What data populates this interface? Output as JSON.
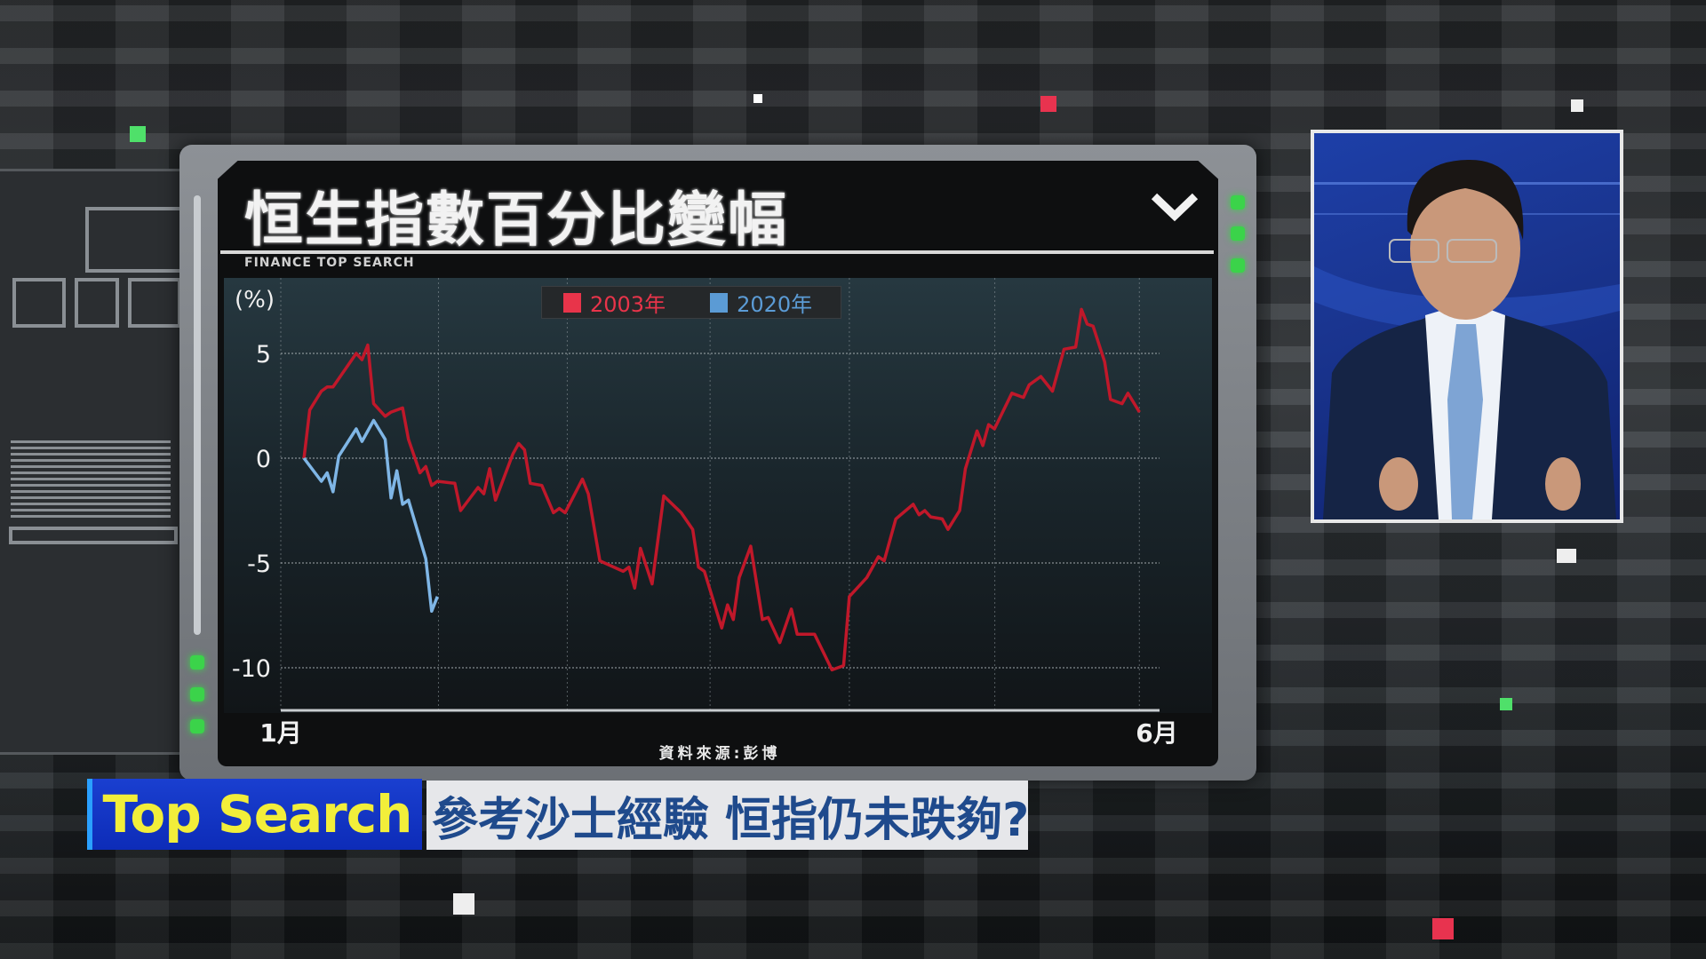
{
  "chart_data": {
    "type": "line",
    "title": "恒生指數百分比變幅",
    "subtitle": "FINANCE TOP SEARCH",
    "ylabel": "(%)",
    "ylim": [
      -12.5,
      8.9
    ],
    "yticks": [
      5,
      0,
      -5,
      -10
    ],
    "xlim": [
      "01-01",
      "06-01"
    ],
    "xticks": [
      {
        "x": "01-01",
        "label": "1月"
      },
      {
        "x": "06-01",
        "label": "6月"
      }
    ],
    "grid": true,
    "legend": "top-center",
    "source": "資料來源:彭博",
    "series": [
      {
        "name": "2003年",
        "color": "#c0182a",
        "legend_color": "#e8344a",
        "points": [
          [
            "01-05",
            0
          ],
          [
            "01-06",
            2.3
          ],
          [
            "01-08",
            3.2
          ],
          [
            "01-09",
            3.4
          ],
          [
            "01-10",
            3.4
          ],
          [
            "01-14",
            5.0
          ],
          [
            "01-15",
            4.7
          ],
          [
            "01-16",
            5.4
          ],
          [
            "01-17",
            2.6
          ],
          [
            "01-19",
            2.0
          ],
          [
            "01-20",
            2.2
          ],
          [
            "01-22",
            2.4
          ],
          [
            "01-23",
            0.9
          ],
          [
            "01-25",
            -0.7
          ],
          [
            "01-26",
            -0.4
          ],
          [
            "01-27",
            -1.3
          ],
          [
            "01-28",
            -1.1
          ],
          [
            "01-31",
            -1.2
          ],
          [
            "02-01",
            -2.5
          ],
          [
            "02-04",
            -1.4
          ],
          [
            "02-05",
            -1.7
          ],
          [
            "02-06",
            -0.5
          ],
          [
            "02-07",
            -2.0
          ],
          [
            "02-10",
            0.2
          ],
          [
            "02-11",
            0.7
          ],
          [
            "02-12",
            0.4
          ],
          [
            "02-13",
            -1.2
          ],
          [
            "02-15",
            -1.3
          ],
          [
            "02-17",
            -2.6
          ],
          [
            "02-18",
            -2.4
          ],
          [
            "02-19",
            -2.6
          ],
          [
            "02-22",
            -1.0
          ],
          [
            "02-23",
            -1.7
          ],
          [
            "02-25",
            -4.9
          ],
          [
            "03-01",
            -5.4
          ],
          [
            "03-02",
            -5.2
          ],
          [
            "03-03",
            -6.2
          ],
          [
            "03-04",
            -4.3
          ],
          [
            "03-06",
            -6.0
          ],
          [
            "03-08",
            -1.8
          ],
          [
            "03-11",
            -2.6
          ],
          [
            "03-13",
            -3.4
          ],
          [
            "03-14",
            -5.2
          ],
          [
            "03-15",
            -5.4
          ],
          [
            "03-18",
            -8.1
          ],
          [
            "03-19",
            -7.0
          ],
          [
            "03-20",
            -7.7
          ],
          [
            "03-21",
            -5.7
          ],
          [
            "03-23",
            -4.2
          ],
          [
            "03-25",
            -7.7
          ],
          [
            "03-26",
            -7.6
          ],
          [
            "03-28",
            -8.8
          ],
          [
            "03-30",
            -7.2
          ],
          [
            "03-31",
            -8.4
          ],
          [
            "04-03",
            -8.4
          ],
          [
            "04-06",
            -10.1
          ],
          [
            "04-08",
            -9.9
          ],
          [
            "04-09",
            -6.6
          ],
          [
            "04-12",
            -5.7
          ],
          [
            "04-14",
            -4.7
          ],
          [
            "04-15",
            -4.9
          ],
          [
            "04-17",
            -2.9
          ],
          [
            "04-20",
            -2.2
          ],
          [
            "04-21",
            -2.7
          ],
          [
            "04-22",
            -2.5
          ],
          [
            "04-23",
            -2.8
          ],
          [
            "04-25",
            -2.9
          ],
          [
            "04-26",
            -3.4
          ],
          [
            "04-28",
            -2.5
          ],
          [
            "04-29",
            -0.5
          ],
          [
            "05-01",
            1.3
          ],
          [
            "05-02",
            0.6
          ],
          [
            "05-03",
            1.6
          ],
          [
            "05-04",
            1.4
          ],
          [
            "05-07",
            3.1
          ],
          [
            "05-09",
            2.9
          ],
          [
            "05-10",
            3.5
          ],
          [
            "05-12",
            3.9
          ],
          [
            "05-14",
            3.2
          ],
          [
            "05-16",
            5.2
          ],
          [
            "05-18",
            5.3
          ],
          [
            "05-19",
            7.1
          ],
          [
            "05-20",
            6.4
          ],
          [
            "05-21",
            6.3
          ],
          [
            "05-23",
            4.6
          ],
          [
            "05-24",
            2.8
          ],
          [
            "05-26",
            2.6
          ],
          [
            "05-27",
            3.1
          ],
          [
            "05-29",
            2.2
          ]
        ]
      },
      {
        "name": "2020年",
        "color": "#7fb6e6",
        "legend_color": "#5b9bd5",
        "points": [
          [
            "01-05",
            0
          ],
          [
            "01-08",
            -1.1
          ],
          [
            "01-09",
            -0.7
          ],
          [
            "01-10",
            -1.6
          ],
          [
            "01-11",
            0.1
          ],
          [
            "01-14",
            1.4
          ],
          [
            "01-15",
            0.8
          ],
          [
            "01-17",
            1.8
          ],
          [
            "01-19",
            0.9
          ],
          [
            "01-20",
            -1.9
          ],
          [
            "01-21",
            -0.6
          ],
          [
            "01-22",
            -2.2
          ],
          [
            "01-23",
            -2.0
          ],
          [
            "01-26",
            -4.8
          ],
          [
            "01-27",
            -7.3
          ],
          [
            "01-28",
            -6.6
          ]
        ]
      }
    ]
  },
  "lower_third": {
    "tag": "Top Search",
    "headline": "參考沙士經驗 恒指仍未跌夠?"
  },
  "icons": {
    "dropdown": "chevron-down-icon"
  },
  "colors": {
    "tag_bg": "#0d2cb8",
    "tag_text": "#f2ee3a",
    "headline_text": "#1f4a8c",
    "led": "#3bd34a"
  }
}
